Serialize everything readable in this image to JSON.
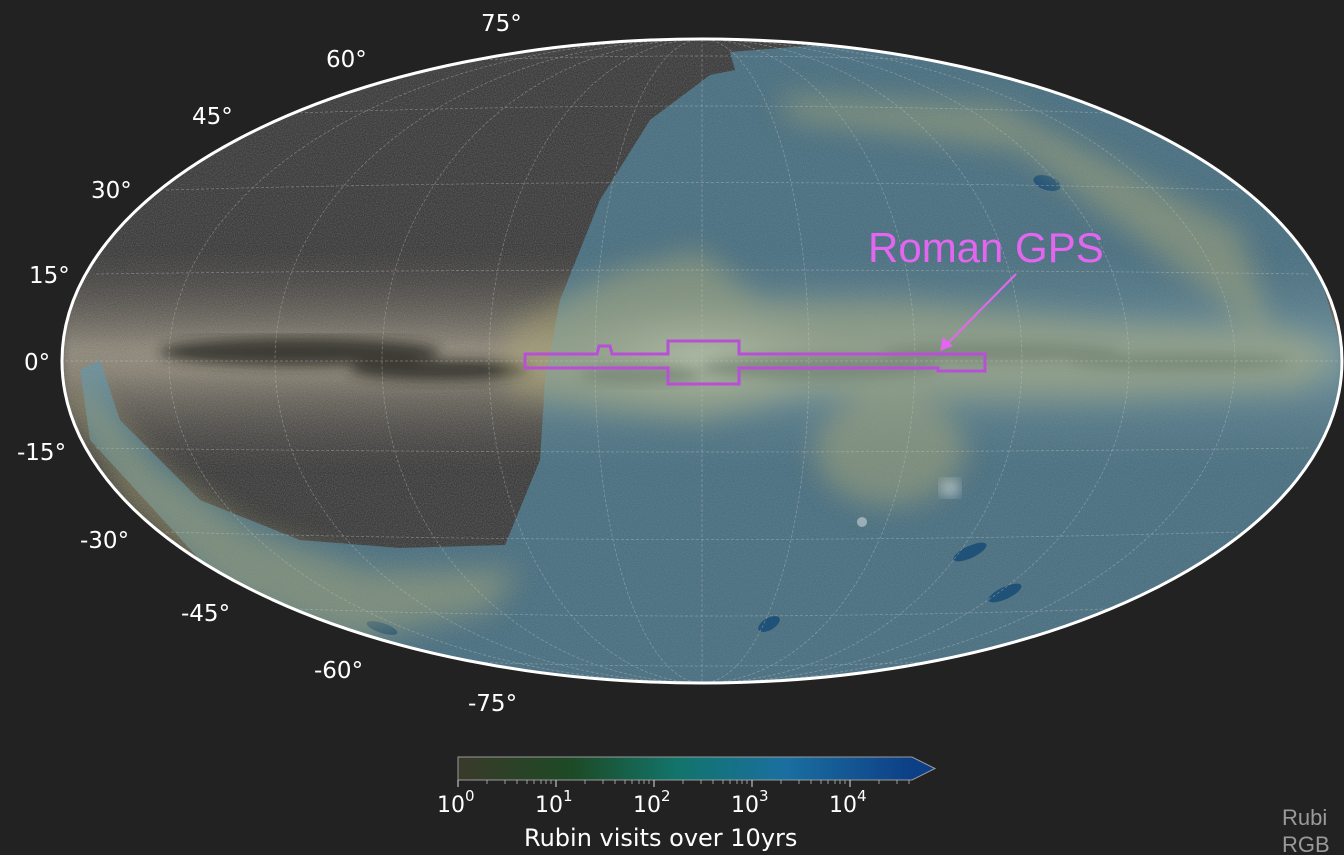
{
  "projection": "Mollweide",
  "latitude_labels": [
    "75°",
    "60°",
    "45°",
    "30°",
    "15°",
    "0°",
    "-15°",
    "-30°",
    "-45°",
    "-60°",
    "-75°"
  ],
  "annotation": {
    "text": "Roman GPS",
    "color": "#e466f0"
  },
  "colorbar": {
    "tick_base": "10",
    "tick_exponents": [
      "0",
      "1",
      "2",
      "3",
      "4"
    ],
    "label": "Rubin visits over 10yrs",
    "colors": [
      "#3a3a2a",
      "#1d4a25",
      "#12746a",
      "#1a6fa0",
      "#0d3f86"
    ],
    "extends_max": true
  },
  "credit_lines": [
    "Rubi",
    "RGB"
  ],
  "colors": {
    "background": "#222222",
    "overlay_fill": "#5b9bb8",
    "galactic_plane_band": "#b5b07a",
    "footprint_outline": "#b84fd6",
    "annotation": "#e466f0",
    "border": "#ffffff"
  }
}
